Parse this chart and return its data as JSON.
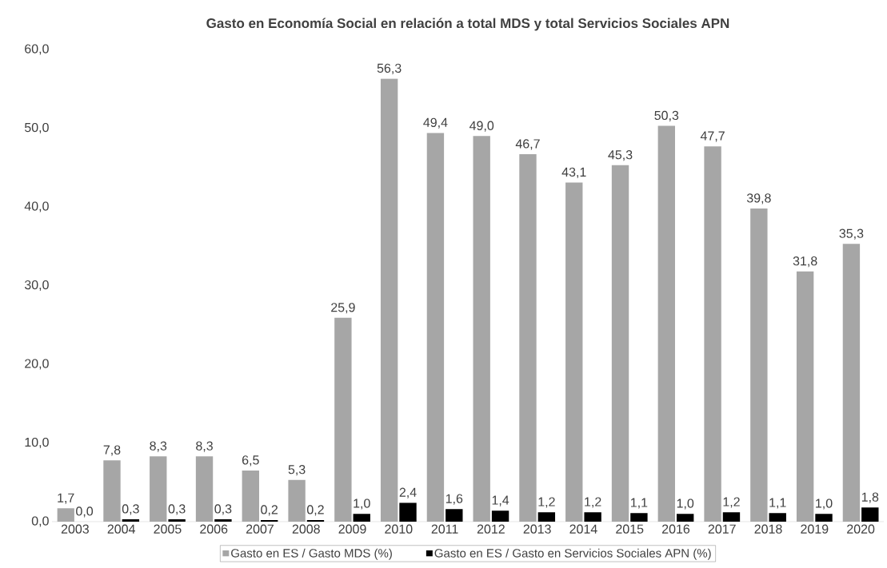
{
  "chart_data": {
    "type": "bar",
    "title": "Gasto en Economía Social en relación a total MDS y total Servicios Sociales APN",
    "categories": [
      "2003",
      "2004",
      "2005",
      "2006",
      "2007",
      "2008",
      "2009",
      "2010",
      "2011",
      "2012",
      "2013",
      "2014",
      "2015",
      "2016",
      "2017",
      "2018",
      "2019",
      "2020"
    ],
    "series": [
      {
        "name": "Gasto en ES / Gasto MDS (%)",
        "color": "#a6a6a6",
        "values": [
          1.7,
          7.8,
          8.3,
          8.3,
          6.5,
          5.3,
          25.9,
          56.3,
          49.4,
          49.0,
          46.7,
          43.1,
          45.3,
          50.3,
          47.7,
          39.8,
          31.8,
          35.3
        ],
        "value_labels": [
          "1,7",
          "7,8",
          "8,3",
          "8,3",
          "6,5",
          "5,3",
          "25,9",
          "56,3",
          "49,4",
          "49,0",
          "46,7",
          "43,1",
          "45,3",
          "50,3",
          "47,7",
          "39,8",
          "31,8",
          "35,3"
        ]
      },
      {
        "name": "Gasto en ES / Gasto en Servicios Sociales APN (%)",
        "color": "#000000",
        "values": [
          0.0,
          0.3,
          0.3,
          0.3,
          0.2,
          0.2,
          1.0,
          2.4,
          1.6,
          1.4,
          1.2,
          1.2,
          1.1,
          1.0,
          1.2,
          1.1,
          1.0,
          1.8
        ],
        "value_labels": [
          "0,0",
          "0,3",
          "0,3",
          "0,3",
          "0,2",
          "0,2",
          "1,0",
          "2,4",
          "1,6",
          "1,4",
          "1,2",
          "1,2",
          "1,1",
          "1,0",
          "1,2",
          "1,1",
          "1,0",
          "1,8"
        ]
      }
    ],
    "ylim": [
      0,
      60
    ],
    "yticks": [
      {
        "value": 0,
        "label": "0,0"
      },
      {
        "value": 10,
        "label": "10,0"
      },
      {
        "value": 20,
        "label": "20,0"
      },
      {
        "value": 30,
        "label": "30,0"
      },
      {
        "value": 40,
        "label": "40,0"
      },
      {
        "value": 50,
        "label": "50,0"
      },
      {
        "value": 60,
        "label": "60,0"
      }
    ],
    "grid": false,
    "legend": "bottom"
  }
}
